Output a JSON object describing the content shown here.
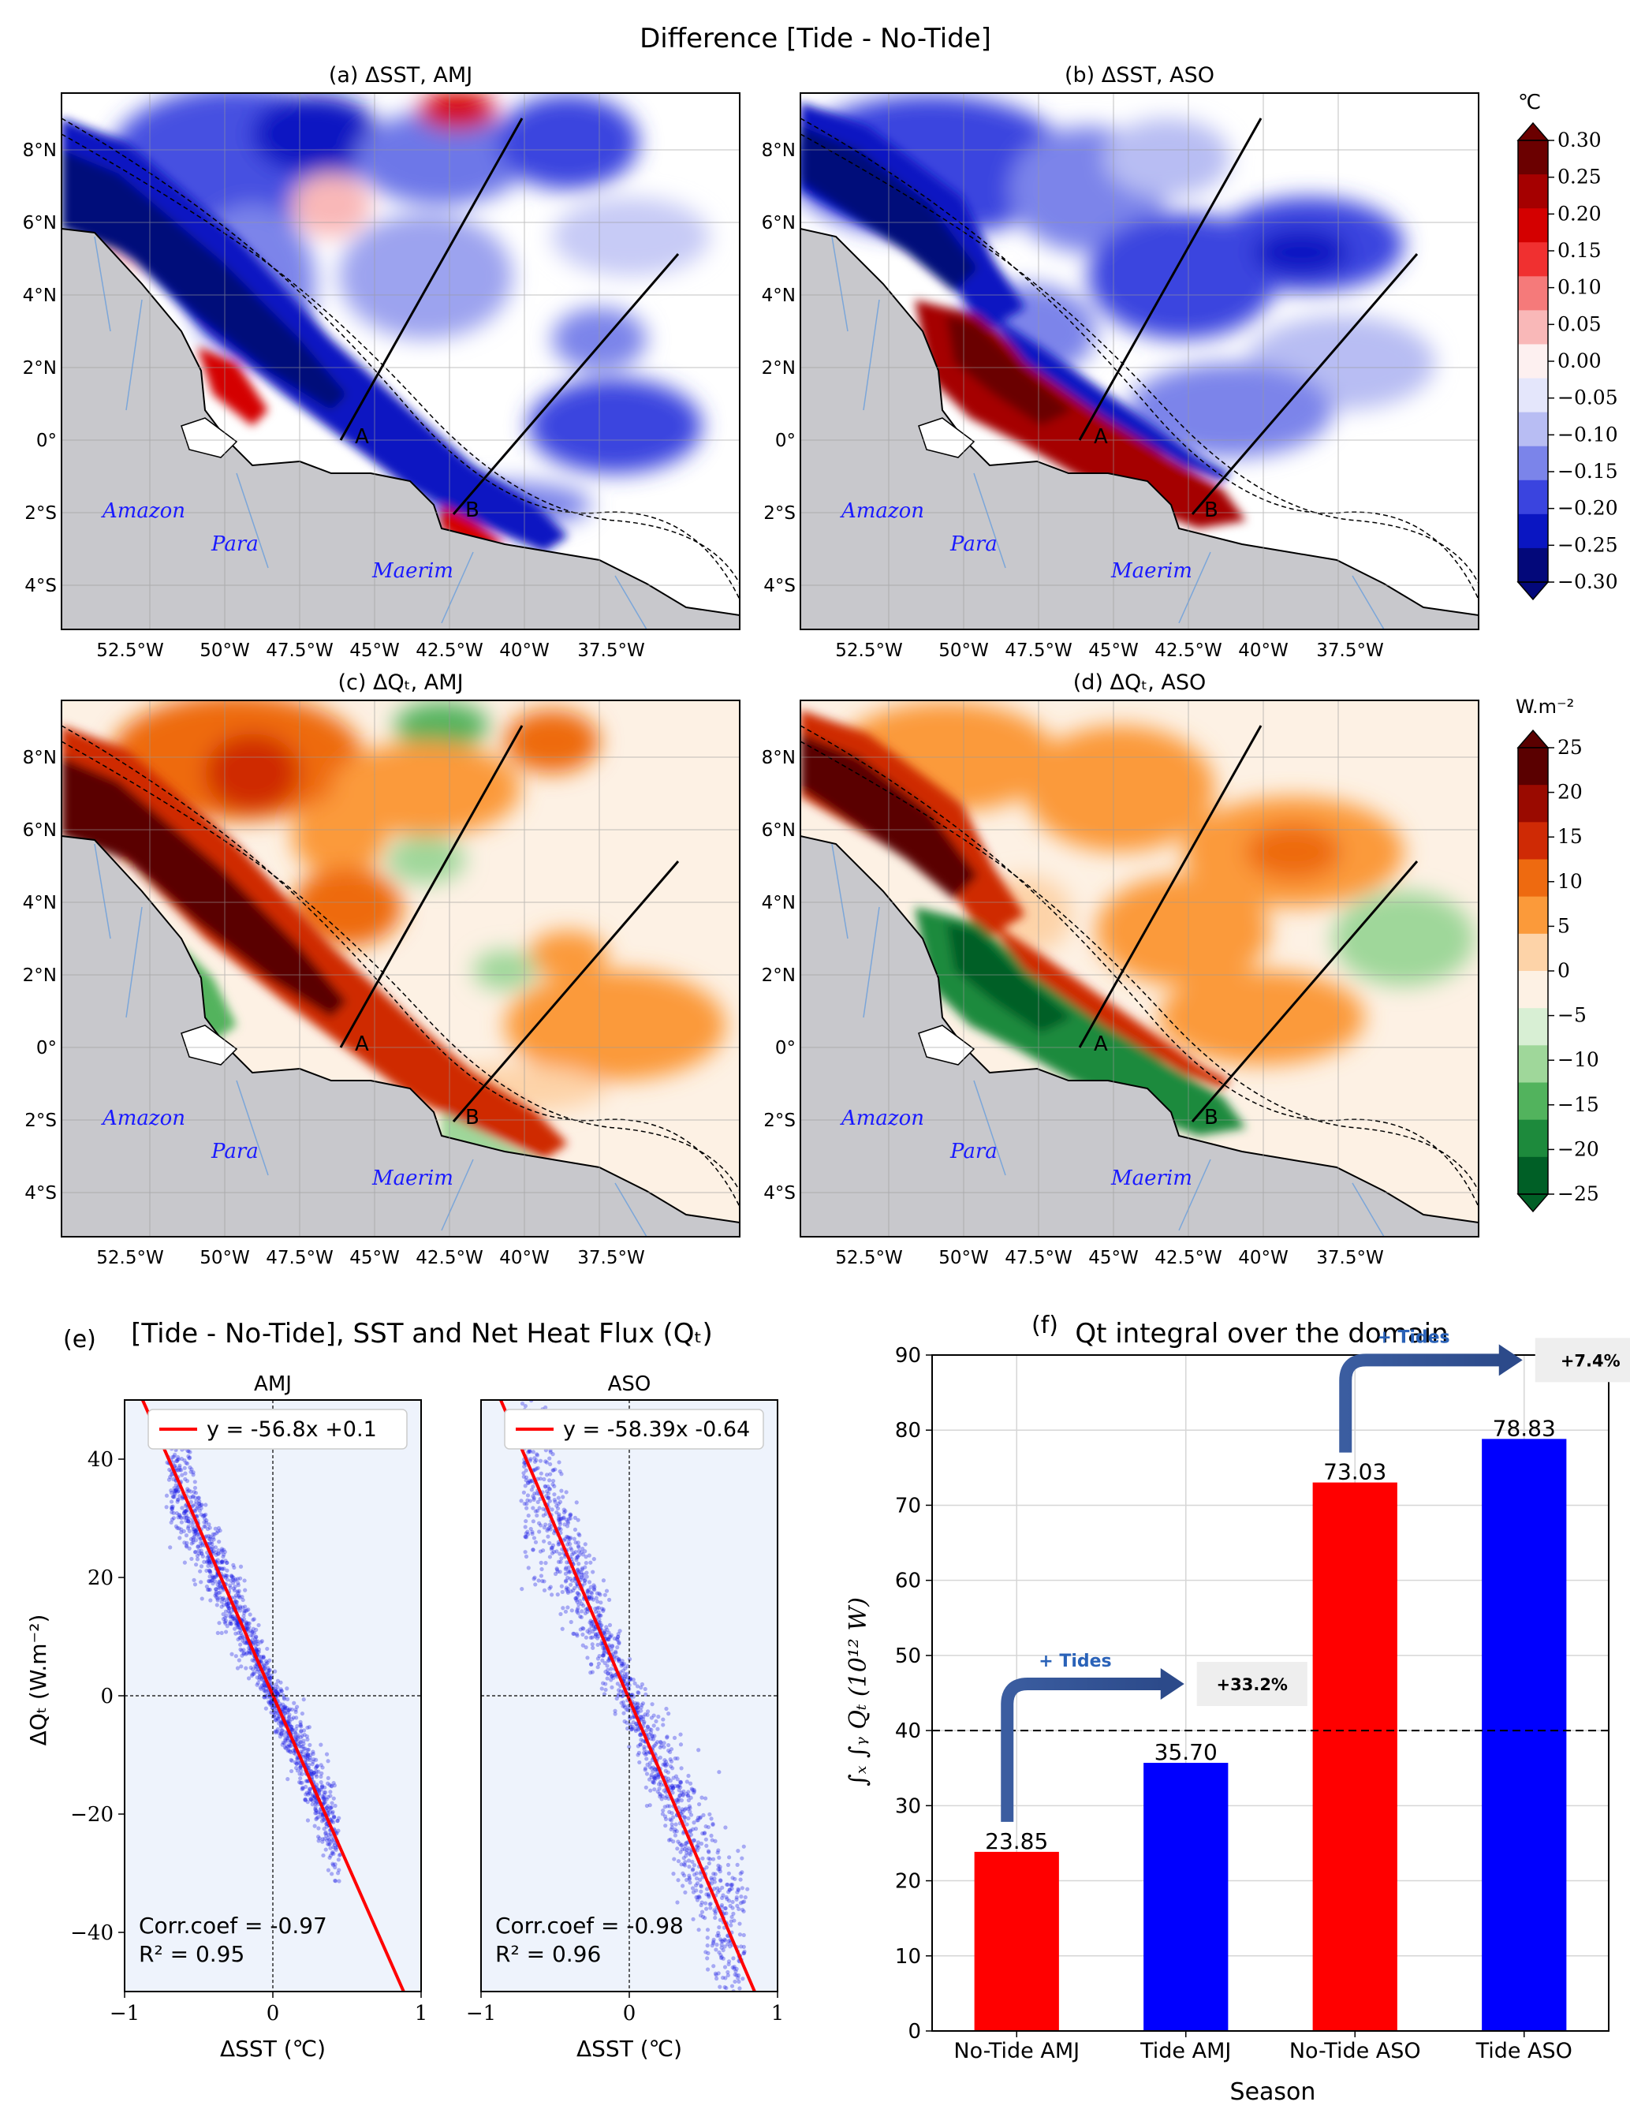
{
  "figure": {
    "suptitle": "Difference [Tide - No-Tide]"
  },
  "maps": {
    "panels": [
      {
        "label": "(a) ΔSST, AMJ",
        "field": "sst",
        "season": "AMJ"
      },
      {
        "label": "(b) ΔSST, ASO",
        "field": "sst",
        "season": "ASO"
      },
      {
        "label": "(c) ΔQₜ, AMJ",
        "field": "qt",
        "season": "AMJ"
      },
      {
        "label": "(d) ΔQₜ, ASO",
        "field": "qt",
        "season": "ASO"
      }
    ],
    "lat_ticks": [
      "8°N",
      "6°N",
      "4°N",
      "2°N",
      "0°",
      "2°S",
      "4°S"
    ],
    "lon_ticks": [
      "52.5°W",
      "50°W",
      "47.5°W",
      "45°W",
      "42.5°W",
      "40°W",
      "37.5°W"
    ],
    "place_names": [
      "Amazon",
      "Para",
      "Maerim"
    ],
    "section_labels": [
      "A",
      "B"
    ]
  },
  "colorbars": {
    "sst": {
      "unit": "℃",
      "ticks": [
        "0.30",
        "0.25",
        "0.20",
        "0.15",
        "0.10",
        "0.05",
        "0.00",
        "−0.05",
        "−0.10",
        "−0.15",
        "−0.20",
        "−0.25",
        "−0.30"
      ],
      "colors": [
        "#6b0000",
        "#a50000",
        "#d40000",
        "#f03030",
        "#f57a7a",
        "#f9b8b8",
        "#fdf0f0",
        "#e4e6fb",
        "#b8bdf3",
        "#7b84ea",
        "#3a44df",
        "#0a16c2",
        "#03087a"
      ]
    },
    "qt": {
      "unit": "W.m⁻²",
      "ticks": [
        "25",
        "20",
        "15",
        "10",
        "5",
        "0",
        "−5",
        "−10",
        "−15",
        "−20",
        "−25"
      ],
      "colors": [
        "#5a0000",
        "#9a0a00",
        "#cf2a05",
        "#ee6a10",
        "#fb9a3a",
        "#fdd3a8",
        "#fdf1e4",
        "#d8efd4",
        "#9fd79a",
        "#52b35d",
        "#1d8a3c",
        "#005f26"
      ]
    }
  },
  "chart_data": [
    {
      "type": "scatter",
      "panel_label": "(e)",
      "title": "[Tide - No-Tide], SST and Net Heat Flux (Qₜ)",
      "subplots": [
        {
          "title": "AMJ",
          "regression": "y = -56.8x +0.1",
          "slope": -56.8,
          "intercept": 0.1,
          "corr_label": "Corr.coef = -0.97",
          "r2_label": "R² = 0.95",
          "x_range": [
            -0.7,
            0.45
          ],
          "scatter_spread": 3.5
        },
        {
          "title": "ASO",
          "regression": "y = -58.39x -0.64",
          "slope": -58.39,
          "intercept": -0.64,
          "corr_label": "Corr.coef = -0.98",
          "r2_label": "R² = 0.96",
          "x_range": [
            -0.72,
            0.78
          ],
          "scatter_spread": 4.0
        }
      ],
      "xlabel": "ΔSST (℃)",
      "ylabel": "ΔQₜ (W.m⁻²)",
      "xlim": [
        -1,
        1
      ],
      "ylim": [
        -50,
        50
      ],
      "xticks": [
        -1,
        0,
        1
      ],
      "yticks": [
        40,
        20,
        0,
        -20,
        -40
      ]
    },
    {
      "type": "bar",
      "panel_label": "(f)",
      "title": "Qt integral over the domain",
      "categories": [
        "No-Tide AMJ",
        "Tide AMJ",
        "No-Tide ASO",
        "Tide ASO"
      ],
      "values": [
        23.85,
        35.7,
        73.03,
        78.83
      ],
      "value_labels": [
        "23.85",
        "35.70",
        "73.03",
        "78.83"
      ],
      "colors": [
        "#ff0000",
        "#0000ff",
        "#ff0000",
        "#0000ff"
      ],
      "xlabel": "Season",
      "ylabel": "∫ₓ ∫ᵧ Qₜ (10¹² W)",
      "ylim": [
        0,
        90
      ],
      "yticks": [
        0,
        10,
        20,
        30,
        40,
        50,
        60,
        70,
        80,
        90
      ],
      "reference_line": 40,
      "annotations": [
        {
          "arrow_label": "+ Tides",
          "change": "+33.2%"
        },
        {
          "arrow_label": "+ Tides",
          "change": "+7.4%"
        }
      ]
    }
  ]
}
